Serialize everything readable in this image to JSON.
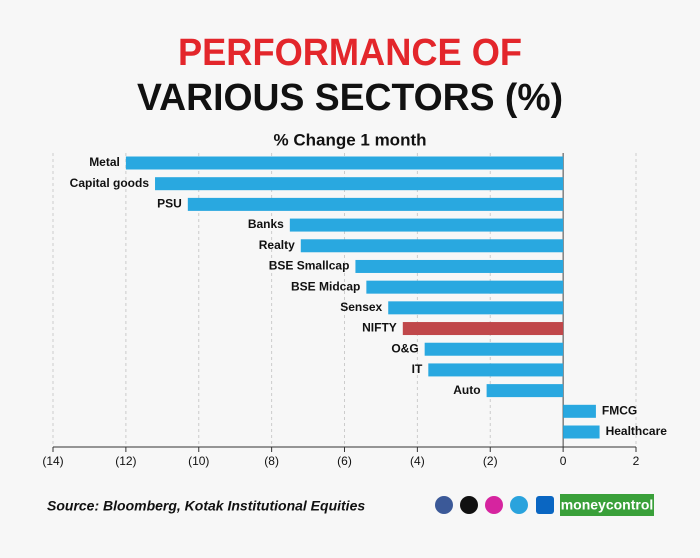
{
  "chart_data": {
    "type": "hbar",
    "title_line1": "PERFORMANCE OF",
    "title_line2": "VARIOUS SECTORS (%)",
    "subtitle": "% Change 1 month",
    "categories": [
      "Metal",
      "Capital goods",
      "PSU",
      "Banks",
      "Realty",
      "BSE Smallcap",
      "BSE Midcap",
      "Sensex",
      "NIFTY",
      "O&G",
      "IT",
      "Auto",
      "FMCG",
      "Healthcare"
    ],
    "values": [
      -12.0,
      -11.2,
      -10.3,
      -7.5,
      -7.2,
      -5.7,
      -5.4,
      -4.8,
      -4.4,
      -3.8,
      -3.7,
      -2.1,
      0.9,
      1.0
    ],
    "colors": [
      "#29a8e0",
      "#29a8e0",
      "#29a8e0",
      "#29a8e0",
      "#29a8e0",
      "#29a8e0",
      "#29a8e0",
      "#29a8e0",
      "#c0474a",
      "#29a8e0",
      "#29a8e0",
      "#29a8e0",
      "#29a8e0",
      "#29a8e0"
    ],
    "xlim": [
      -14,
      2
    ],
    "xticks": [
      {
        "value": -14,
        "label": "(14)"
      },
      {
        "value": -12,
        "label": "(12)"
      },
      {
        "value": -10,
        "label": "(10)"
      },
      {
        "value": -8,
        "label": "(8)"
      },
      {
        "value": -6,
        "label": "(6)"
      },
      {
        "value": -4,
        "label": "(4)"
      },
      {
        "value": -2,
        "label": "(2)"
      },
      0,
      2
    ],
    "grid": true,
    "source": "Source: Bloomberg, Kotak Institutional Equities",
    "logo": "moneycontrol"
  }
}
